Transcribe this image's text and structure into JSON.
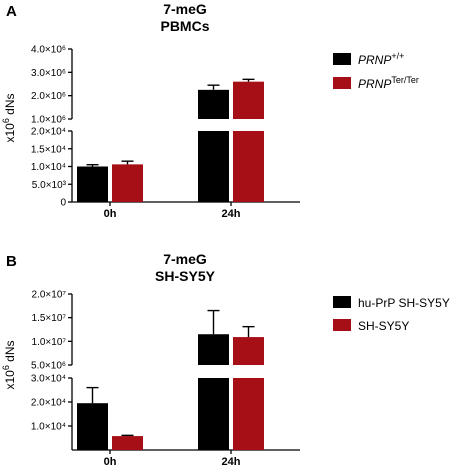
{
  "chart_data": [
    {
      "panel_label": "A",
      "type": "bar",
      "title": "7-meG",
      "subtitle": "PBMCs",
      "ylabel_main": "x10",
      "ylabel_exp": "6",
      "ylabel_tail": " dNs",
      "categories": [
        "0h",
        "24h"
      ],
      "broken_axis": {
        "lower": {
          "ylim": [
            0,
            20000
          ],
          "ticks": [
            "0",
            "5.0×10³",
            "1.0×10⁴",
            "1.5×10⁴",
            "2.0×10⁴"
          ],
          "tick_values": [
            0,
            5000,
            10000,
            15000,
            20000
          ]
        },
        "upper": {
          "ylim": [
            1000000,
            4000000
          ],
          "ticks": [
            "1.0×10⁶",
            "2.0×10⁶",
            "3.0×10⁶",
            "4.0×10⁶"
          ],
          "tick_values": [
            1000000,
            2000000,
            3000000,
            4000000
          ]
        }
      },
      "series": [
        {
          "name_main": "PRNP",
          "name_sup": "+/+",
          "color": "#000000",
          "values": [
            10000,
            2250000
          ],
          "errors": [
            500,
            200000
          ]
        },
        {
          "name_main": "PRNP",
          "name_sup": "Ter/Ter",
          "color": "#A50F15",
          "values": [
            10600,
            2600000
          ],
          "errors": [
            900,
            100000
          ]
        }
      ],
      "legend_position": "right"
    },
    {
      "panel_label": "B",
      "type": "bar",
      "title": "7-meG",
      "subtitle": "SH-SY5Y",
      "ylabel_main": "x10",
      "ylabel_exp": "6",
      "ylabel_tail": " dNs",
      "categories": [
        "0h",
        "24h"
      ],
      "broken_axis": {
        "lower": {
          "ylim": [
            0,
            30000
          ],
          "ticks": [
            "1.0×10⁴",
            "2.0×10⁴",
            "3.0×10⁴"
          ],
          "tick_values": [
            10000,
            20000,
            30000
          ]
        },
        "upper": {
          "ylim": [
            5000000,
            20000000
          ],
          "ticks": [
            "5.0×10⁶",
            "1.0×10⁷",
            "1.5×10⁷",
            "2.0×10⁷"
          ],
          "tick_values": [
            5000000,
            10000000,
            15000000,
            20000000
          ]
        }
      },
      "series": [
        {
          "name_main": "hu-PrP SH-SY5Y",
          "name_sup": "",
          "color": "#000000",
          "values": [
            19500,
            11500000
          ],
          "errors": [
            6500,
            5000000
          ]
        },
        {
          "name_main": "SH-SY5Y",
          "name_sup": "",
          "color": "#A50F15",
          "values": [
            5800,
            10900000
          ],
          "errors": [
            300,
            2200000
          ]
        }
      ],
      "legend_position": "right"
    }
  ]
}
